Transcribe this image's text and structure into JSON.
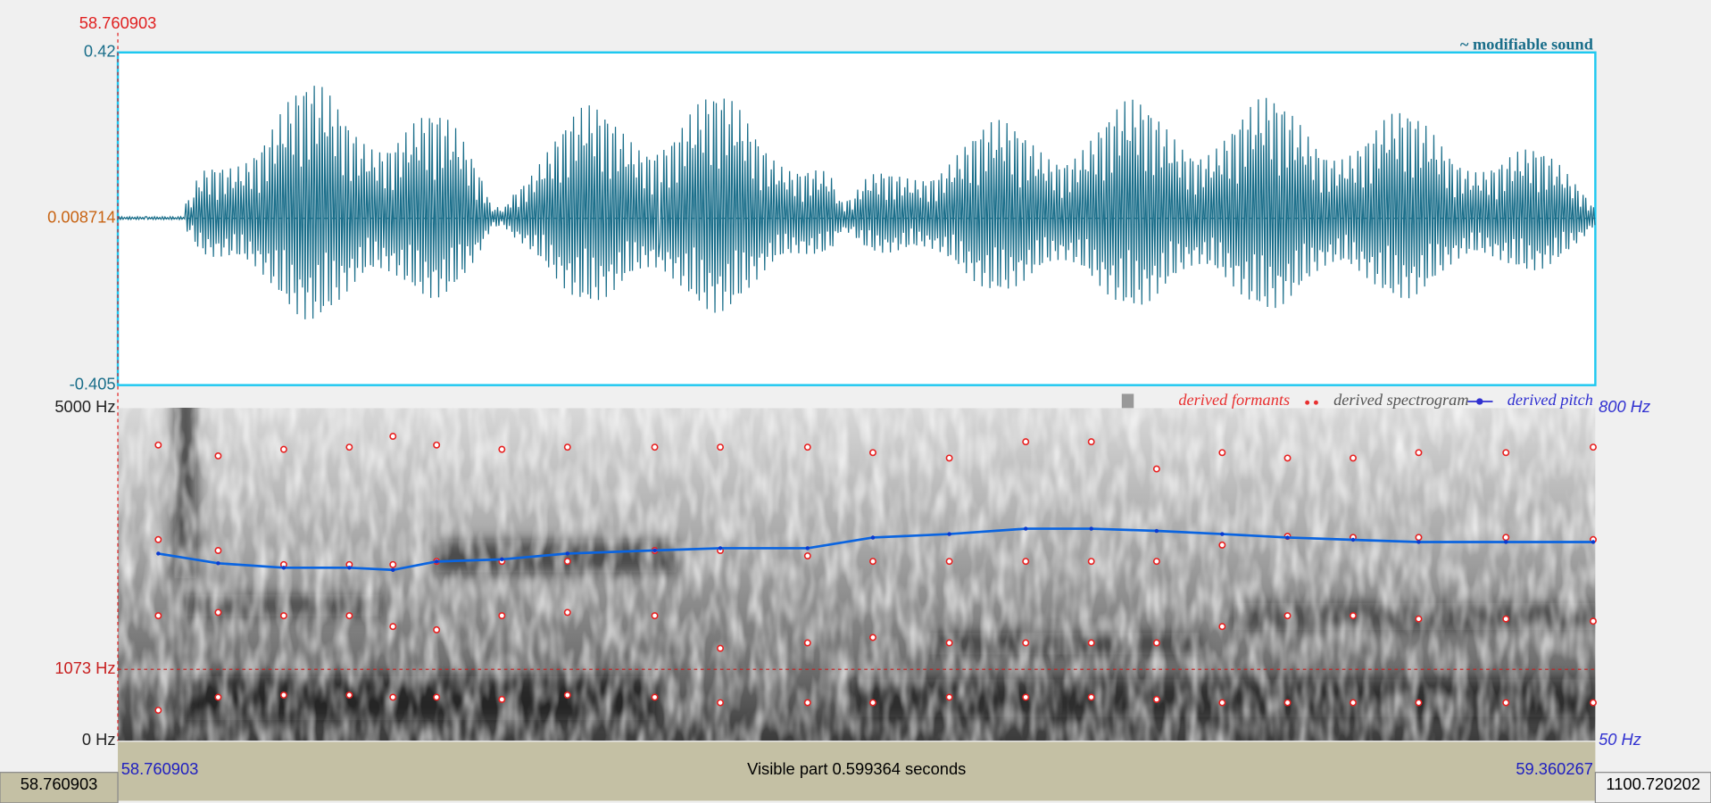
{
  "cursor": {
    "time": 58.760903
  },
  "waveform": {
    "title": "~ modifiable sound",
    "ymax": 0.42,
    "ymid": 0.008714,
    "ymin": -0.405
  },
  "spectrogram": {
    "ymax": {
      "value": 5000,
      "label": "5000 Hz"
    },
    "ymin": {
      "value": 0,
      "label": "0 Hz"
    },
    "cursor": {
      "value": 1073,
      "label": "1073 Hz"
    }
  },
  "legend": {
    "spectrogram": "derived spectrogram",
    "formants": "derived formants",
    "pitch": "derived pitch"
  },
  "frames": [
    58.7773,
    58.8016,
    58.8282,
    58.8548,
    58.8725,
    58.8902,
    58.9167,
    58.9433,
    58.9787,
    59.0053,
    59.0407,
    59.0672,
    59.0982,
    59.1292,
    59.1558,
    59.1823,
    59.2089,
    59.2354,
    59.262,
    59.2886,
    59.324,
    59.3594
  ],
  "pitch": {
    "ymax": {
      "value": 800,
      "label": "800 Hz"
    },
    "ymin": {
      "value": 50,
      "label": "50 Hz"
    },
    "values": [
      472,
      450,
      440,
      440,
      435,
      454,
      459,
      472,
      479,
      484,
      484,
      508,
      516,
      528,
      528,
      523,
      516,
      508,
      503,
      498,
      498,
      498
    ]
  },
  "formants": {
    "tracks": [
      [
        458,
        654,
        686,
        686,
        654,
        654,
        621,
        686,
        654,
        572,
        572,
        572,
        654,
        654,
        654,
        621,
        572,
        572,
        572,
        572,
        572,
        572
      ],
      [
        1879,
        1928,
        1879,
        1879,
        1716,
        1667,
        1879,
        1928,
        1879,
        1389,
        1471,
        1552,
        1471,
        1471,
        1471,
        1471,
        1716,
        1879,
        1879,
        1830,
        1830,
        1797
      ],
      [
        3023,
        2859,
        2647,
        2647,
        2647,
        2696,
        2696,
        2696,
        2859,
        2859,
        2778,
        2696,
        2696,
        2696,
        2696,
        2696,
        2941,
        3072,
        3056,
        3056,
        3056,
        3023
      ],
      [
        4444,
        4281,
        4379,
        4412,
        4575,
        4444,
        4379,
        4412,
        4412,
        4412,
        4412,
        4330,
        4248,
        4493,
        4493,
        4085,
        4330,
        4248,
        4248,
        4330,
        4330,
        4412
      ]
    ]
  },
  "time_axis": {
    "start": 58.760903,
    "end": 59.360267,
    "visible": "Visible part 0.599364 seconds"
  },
  "status": {
    "left": "58.760903",
    "right": "1100.720202"
  }
}
